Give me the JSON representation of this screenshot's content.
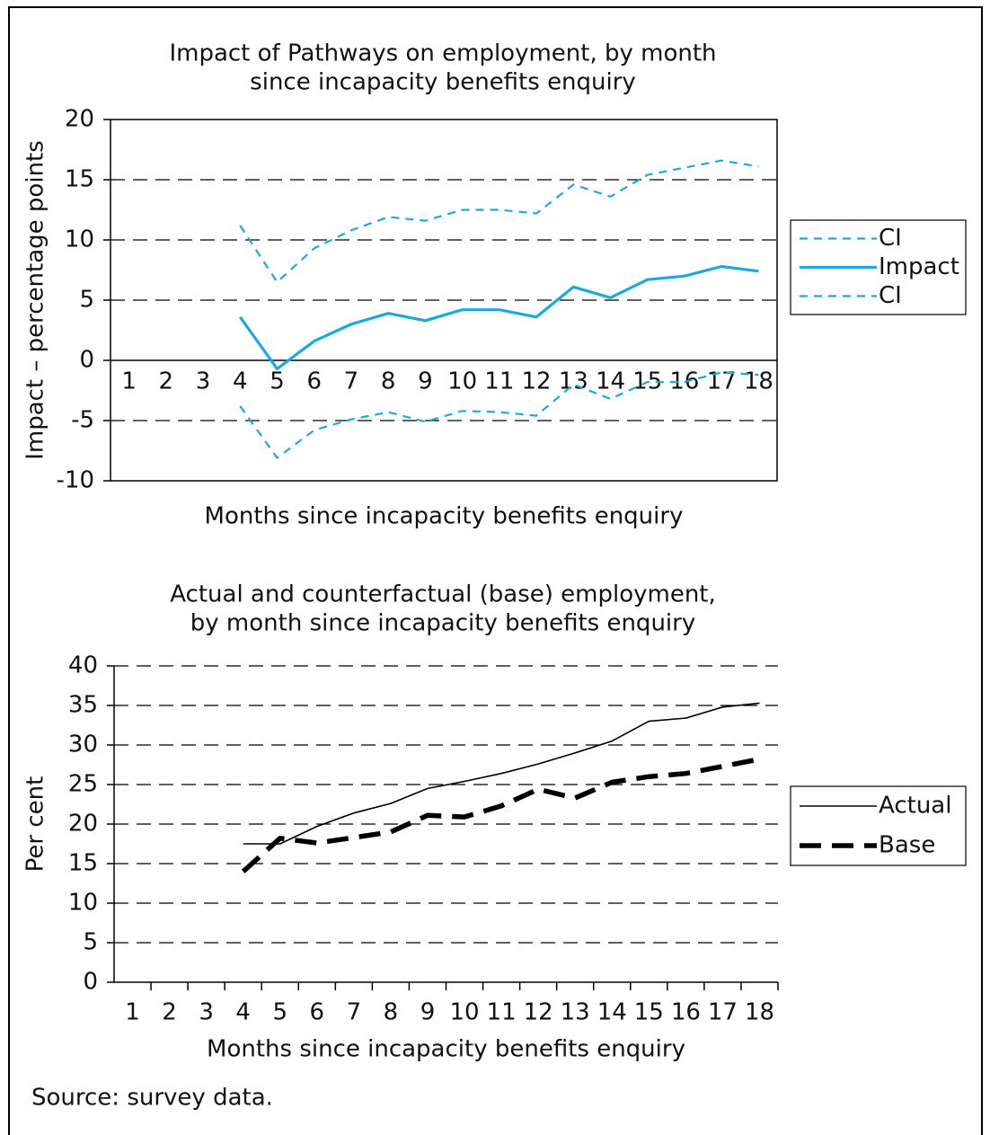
{
  "chart_data": [
    {
      "type": "line",
      "title": [
        "Impact of Pathways on employment, by month",
        "since incapacity benefits enquiry"
      ],
      "x_label": "Months since incapacity benefits enquiry",
      "y_label": "Impact – percentage points",
      "categories": [
        "1",
        "2",
        "3",
        "4",
        "5",
        "6",
        "7",
        "8",
        "9",
        "10",
        "11",
        "12",
        "13",
        "14",
        "15",
        "16",
        "17",
        "18"
      ],
      "ylim": [
        -10,
        20
      ],
      "yticks": [
        -10,
        -5,
        0,
        5,
        10,
        15,
        20
      ],
      "grid": true,
      "legend": "right",
      "series": [
        {
          "name": "CI",
          "color": "#1ba9e1",
          "dashed": true,
          "values": [
            null,
            null,
            null,
            11.2,
            6.5,
            9.3,
            10.8,
            11.9,
            11.6,
            12.5,
            12.5,
            12.2,
            14.6,
            13.6,
            15.4,
            16.0,
            16.6,
            16.1
          ]
        },
        {
          "name": "Impact",
          "color": "#1ba9e1",
          "dashed": false,
          "values": [
            null,
            null,
            null,
            3.6,
            -0.7,
            1.6,
            3.0,
            3.9,
            3.3,
            4.2,
            4.2,
            3.6,
            6.1,
            5.2,
            6.7,
            7.0,
            7.8,
            7.4
          ]
        },
        {
          "name": "CI",
          "color": "#1ba9e1",
          "dashed": true,
          "values": [
            null,
            null,
            null,
            -3.8,
            -8.1,
            -5.8,
            -4.9,
            -4.3,
            -5.1,
            -4.2,
            -4.3,
            -4.6,
            -2.0,
            -3.2,
            -1.8,
            -1.8,
            -1.0,
            -1.2
          ]
        }
      ]
    },
    {
      "type": "line",
      "title": [
        "Actual and counterfactual (base) employment,",
        "by month since incapacity benefits enquiry"
      ],
      "x_label": "Months since incapacity benefits enquiry",
      "y_label": "Per cent",
      "categories": [
        "1",
        "2",
        "3",
        "4",
        "5",
        "6",
        "7",
        "8",
        "9",
        "10",
        "11",
        "12",
        "13",
        "14",
        "15",
        "16",
        "17",
        "18"
      ],
      "ylim": [
        0,
        40
      ],
      "yticks": [
        0,
        5,
        10,
        15,
        20,
        25,
        30,
        35,
        40
      ],
      "grid": true,
      "legend": "right",
      "series": [
        {
          "name": "Actual",
          "color": "#000000",
          "dashed": false,
          "values": [
            null,
            null,
            null,
            17.5,
            17.5,
            19.7,
            21.4,
            22.6,
            24.5,
            25.4,
            26.4,
            27.6,
            29.0,
            30.5,
            33.0,
            33.4,
            34.8,
            35.3
          ]
        },
        {
          "name": "Base",
          "color": "#000000",
          "dashed": true,
          "values": [
            null,
            null,
            null,
            14.0,
            18.2,
            17.6,
            18.3,
            19.0,
            21.1,
            20.9,
            22.3,
            24.4,
            23.3,
            25.3,
            26.0,
            26.4,
            27.3,
            28.2
          ]
        }
      ]
    }
  ],
  "source": "Source: survey data."
}
